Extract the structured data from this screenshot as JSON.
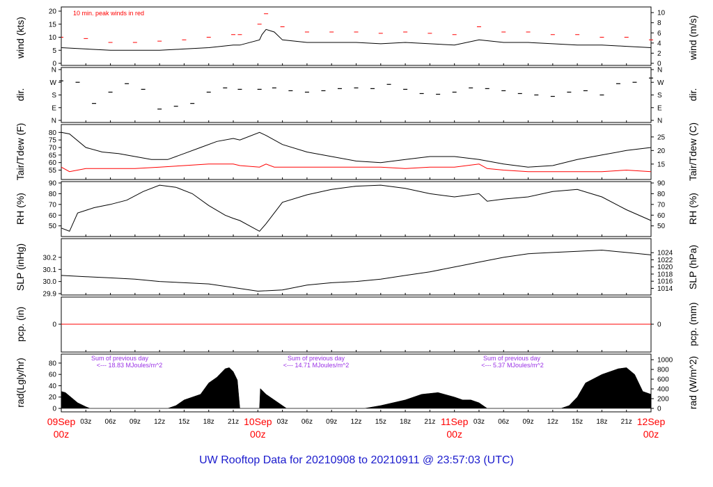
{
  "chart_data": {
    "type": "line",
    "title": "UW Rooftop Data for 20210908  to  20210911 @ 23:57:03  (UTC)",
    "x_range": [
      "2021-09-09T00:00Z",
      "2021-09-12T00:00Z"
    ],
    "x_ticks": {
      "hour_labels": [
        "03z",
        "06z",
        "09z",
        "12z",
        "15z",
        "18z",
        "21z"
      ],
      "day_labels": [
        {
          "date": "09Sep",
          "hour": "00z"
        },
        {
          "date": "10Sep",
          "hour": "00z"
        },
        {
          "date": "11Sep",
          "hour": "00z"
        },
        {
          "date": "12Sep",
          "hour": "00z"
        }
      ]
    },
    "panels": [
      {
        "id": "wind",
        "ylabel_left": "wind (kts)",
        "ylabel_right": "wind (m/s)",
        "ylim": [
          0,
          20
        ],
        "left_ticks": [
          0,
          5,
          10,
          15,
          20
        ],
        "right_ticks": [
          0,
          2,
          4,
          6,
          8,
          10
        ],
        "right_factor": 0.5144,
        "annotation": "10 min. peak winds in red",
        "gap": [
          21.8,
          24.2
        ],
        "series": [
          {
            "name": "wind",
            "color": "#000000",
            "x": [
              0,
              3,
              6,
              9,
              12,
              15,
              18,
              21,
              21.8,
              24.2,
              24.5,
              25,
              26,
              27,
              30,
              33,
              36,
              39,
              42,
              45,
              48,
              51,
              54,
              57,
              60,
              63,
              66,
              69,
              72
            ],
            "y": [
              6,
              5.5,
              5,
              5,
              5,
              5.5,
              6,
              7,
              7,
              9,
              11,
              13,
              12,
              9,
              8,
              8,
              8,
              7.5,
              8,
              7.5,
              7,
              9,
              8,
              8,
              7.5,
              7,
              7,
              6.5,
              6
            ]
          },
          {
            "name": "peak",
            "color": "#ff0000",
            "x": [
              0,
              3,
              6,
              9,
              12,
              15,
              18,
              21,
              21.8,
              24.2,
              25,
              27,
              30,
              33,
              36,
              39,
              42,
              45,
              48,
              51,
              54,
              57,
              60,
              63,
              66,
              69,
              72
            ],
            "y": [
              10,
              9.5,
              8,
              8,
              8.5,
              9,
              10,
              11,
              11,
              15,
              19,
              14,
              12,
              12,
              12,
              11.5,
              12,
              11.5,
              11,
              14,
              12,
              12,
              11,
              11,
              10,
              10,
              9
            ]
          }
        ]
      },
      {
        "id": "dir",
        "ylabel_left": "dir.",
        "ylabel_right": "dir.",
        "ylim": [
          0,
          360
        ],
        "tick_labels": [
          "N",
          "E",
          "S",
          "W",
          "N"
        ],
        "series": [
          {
            "name": "dir",
            "color": "#000000",
            "x": [
              0,
              2,
              4,
              6,
              8,
              10,
              12,
              14,
              16,
              18,
              20,
              21.8,
              24.2,
              26,
              28,
              30,
              32,
              34,
              36,
              38,
              40,
              42,
              44,
              46,
              48,
              50,
              52,
              54,
              56,
              58,
              60,
              62,
              64,
              66,
              68,
              70,
              72
            ],
            "y": [
              280,
              270,
              120,
              200,
              260,
              220,
              80,
              100,
              120,
              200,
              230,
              220,
              220,
              230,
              210,
              200,
              210,
              225,
              230,
              225,
              255,
              220,
              190,
              185,
              200,
              230,
              225,
              210,
              190,
              180,
              170,
              200,
              210,
              180,
              260,
              270,
              300
            ]
          }
        ]
      },
      {
        "id": "temp",
        "ylabel_left": "Tair/Tdew (F)",
        "ylabel_right": "Tair/Tdew (C)",
        "ylim": [
          52,
          82
        ],
        "left_ticks": [
          55,
          60,
          65,
          70,
          75,
          80
        ],
        "right_ticks": [
          15,
          20,
          25
        ],
        "series": [
          {
            "name": "Tair",
            "color": "#000000",
            "x": [
              0,
              1,
              3,
              5,
              7,
              9,
              11,
              13,
              15,
              17,
              19,
              21,
              21.8,
              24.2,
              25,
              27,
              30,
              33,
              36,
              39,
              42,
              45,
              48,
              51,
              54,
              57,
              60,
              63,
              66,
              69,
              72
            ],
            "y": [
              80,
              79,
              70,
              67,
              66,
              64,
              62,
              62,
              66,
              70,
              74,
              76,
              75,
              80,
              78,
              72,
              67,
              64,
              61,
              60,
              62,
              64,
              64,
              62,
              59,
              57,
              58,
              62,
              65,
              68,
              70
            ]
          },
          {
            "name": "Tdew",
            "color": "#ff0000",
            "x": [
              0,
              1,
              3,
              6,
              9,
              12,
              15,
              18,
              21,
              21.8,
              24.2,
              25,
              26,
              27,
              30,
              33,
              36,
              39,
              42,
              45,
              48,
              51,
              52,
              54,
              57,
              60,
              63,
              66,
              69,
              72
            ],
            "y": [
              57,
              54,
              56,
              56,
              56,
              57,
              58,
              59,
              59,
              58,
              57,
              59,
              57,
              57,
              57,
              57,
              57,
              57,
              56,
              57,
              57,
              59,
              56,
              55,
              54,
              54,
              54,
              54,
              55,
              54
            ]
          }
        ]
      },
      {
        "id": "rh",
        "ylabel_left": "RH (%)",
        "ylabel_right": "RH (%)",
        "ylim": [
          42,
          90
        ],
        "left_ticks": [
          50,
          60,
          70,
          80,
          90
        ],
        "right_ticks": [
          50,
          60,
          70,
          80,
          90
        ],
        "series": [
          {
            "name": "RH",
            "color": "#000000",
            "x": [
              0,
              1,
              2,
              4,
              6,
              8,
              10,
              12,
              14,
              16,
              18,
              20,
              21,
              21.8,
              24.2,
              25,
              27,
              30,
              33,
              36,
              39,
              42,
              45,
              48,
              51,
              52,
              54,
              57,
              60,
              63,
              66,
              69,
              72
            ],
            "y": [
              48,
              45,
              62,
              67,
              70,
              74,
              82,
              88,
              86,
              80,
              69,
              60,
              57,
              55,
              45,
              52,
              72,
              79,
              84,
              87,
              88,
              85,
              80,
              77,
              80,
              73,
              75,
              77,
              82,
              84,
              77,
              65,
              55
            ]
          }
        ]
      },
      {
        "id": "slp",
        "ylabel_left": "SLP (inHg)",
        "ylabel_right": "SLP (hPa)",
        "ylim": [
          29.9,
          30.28
        ],
        "left_ticks": [
          29.9,
          30.0,
          30.1,
          30.2
        ],
        "right_ticks": [
          1014,
          1016,
          1018,
          1020,
          1022,
          1024
        ],
        "series": [
          {
            "name": "SLP",
            "color": "#000000",
            "x": [
              0,
              3,
              6,
              9,
              12,
              15,
              18,
              21,
              24,
              27,
              30,
              33,
              36,
              39,
              42,
              45,
              48,
              51,
              54,
              57,
              60,
              63,
              66,
              69,
              72
            ],
            "y": [
              30.05,
              30.04,
              30.03,
              30.02,
              30.0,
              29.99,
              29.98,
              29.95,
              29.92,
              29.93,
              29.97,
              29.99,
              30.0,
              30.02,
              30.05,
              30.08,
              30.12,
              30.16,
              30.2,
              30.23,
              30.24,
              30.25,
              30.26,
              30.24,
              30.22
            ]
          }
        ]
      },
      {
        "id": "pcp",
        "ylabel_left": "pcp. (in)",
        "ylabel_right": "pcp. (mm)",
        "left_ticks": [
          0
        ],
        "right_ticks": [
          0
        ],
        "series": [
          {
            "name": "pcp",
            "color": "#ff0000",
            "x": [
              0,
              72
            ],
            "y": [
              0,
              0
            ]
          }
        ]
      },
      {
        "id": "rad",
        "ylabel_left": "rad(Lgly/hr)",
        "ylabel_right": "rad (W/m^2)",
        "ylim": [
          0,
          86
        ],
        "left_ticks": [
          0,
          20,
          40,
          60,
          80
        ],
        "right_ticks": [
          0,
          200,
          400,
          600,
          800,
          1000
        ],
        "series": [
          {
            "name": "rad",
            "type": "area",
            "color": "#000000",
            "x": [
              0,
              0.5,
              1,
              2,
              3,
              3.5,
              13,
              14,
              15,
              17,
              18,
              19,
              20,
              20.5,
              21,
              21.5,
              21.8,
              24.2,
              24.3,
              25,
              27,
              27.5,
              37,
              39,
              42,
              44,
              46,
              48,
              49,
              50,
              51,
              52,
              61,
              62,
              63,
              64,
              66,
              68,
              69,
              70,
              71,
              72
            ],
            "y": [
              30,
              28,
              22,
              10,
              3,
              0,
              0,
              5,
              15,
              25,
              45,
              55,
              70,
              72,
              65,
              50,
              0,
              0,
              35,
              25,
              5,
              0,
              0,
              5,
              15,
              25,
              28,
              20,
              15,
              15,
              10,
              0,
              0,
              5,
              20,
              45,
              60,
              70,
              72,
              60,
              30,
              25
            ]
          }
        ],
        "daily_sums": [
          {
            "title": "Sum of previous day",
            "value": "<--- 18.83 MJoules/m^2"
          },
          {
            "title": "Sum of previous day",
            "value": "<--- 14.71 MJoules/m^2"
          },
          {
            "title": "Sum of previous day",
            "value": "<--- 5.37 MJoules/m^2"
          }
        ]
      }
    ]
  }
}
